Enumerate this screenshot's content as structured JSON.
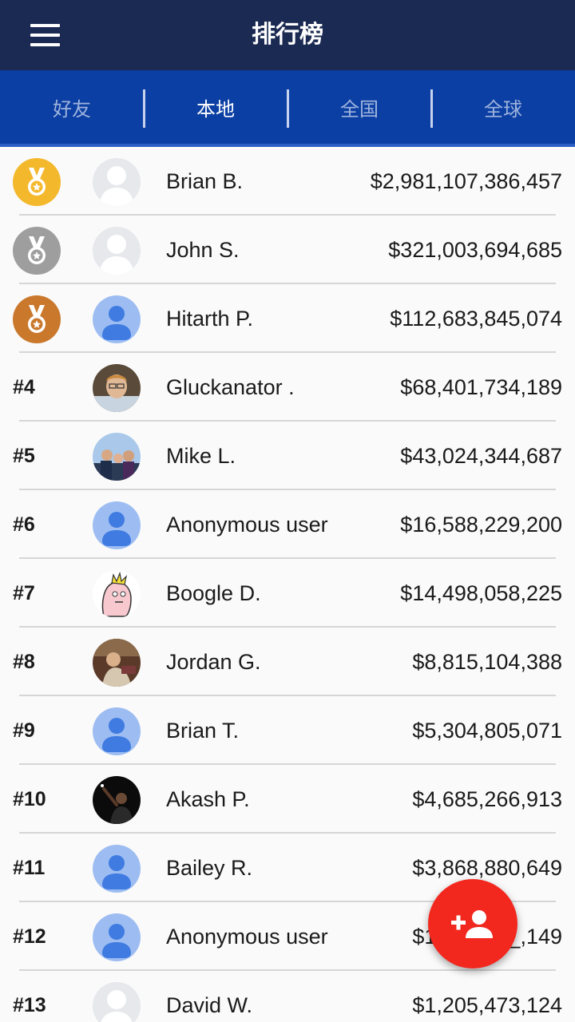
{
  "header": {
    "title": "排行榜"
  },
  "tabs": [
    {
      "label": "好友",
      "active": false
    },
    {
      "label": "本地",
      "active": true
    },
    {
      "label": "全国",
      "active": false
    },
    {
      "label": "全球",
      "active": false
    }
  ],
  "rows": [
    {
      "rank": "",
      "medal": "gold",
      "avatar": "silhouette-icon",
      "name": "Brian B.",
      "score": "$2,981,107,386,457"
    },
    {
      "rank": "",
      "medal": "silver",
      "avatar": "silhouette-icon",
      "name": "John S.",
      "score": "$321,003,694,685"
    },
    {
      "rank": "",
      "medal": "bronze",
      "avatar": "default-user-icon",
      "name": "Hitarth P.",
      "score": "$112,683,845,074"
    },
    {
      "rank": "#4",
      "medal": "",
      "avatar": "photo",
      "name": "Gluckanator .",
      "score": "$68,401,734,189"
    },
    {
      "rank": "#5",
      "medal": "",
      "avatar": "photo",
      "name": "Mike L.",
      "score": "$43,024,344,687"
    },
    {
      "rank": "#6",
      "medal": "",
      "avatar": "default-user-icon",
      "name": "Anonymous user",
      "score": "$16,588,229,200"
    },
    {
      "rank": "#7",
      "medal": "",
      "avatar": "cartoon",
      "name": "Boogle D.",
      "score": "$14,498,058,225"
    },
    {
      "rank": "#8",
      "medal": "",
      "avatar": "photo",
      "name": "Jordan G.",
      "score": "$8,815,104,388"
    },
    {
      "rank": "#9",
      "medal": "",
      "avatar": "default-user-icon",
      "name": "Brian T.",
      "score": "$5,304,805,071"
    },
    {
      "rank": "#10",
      "medal": "",
      "avatar": "photo",
      "name": "Akash P.",
      "score": "$4,685,266,913"
    },
    {
      "rank": "#11",
      "medal": "",
      "avatar": "default-user-icon",
      "name": "Bailey R.",
      "score": "$3,868,880,649"
    },
    {
      "rank": "#12",
      "medal": "",
      "avatar": "default-user-icon",
      "name": "Anonymous user",
      "score": "$1,___,___,149"
    },
    {
      "rank": "#13",
      "medal": "",
      "avatar": "silhouette-icon",
      "name": "David W.",
      "score": "$1,205,473,124"
    }
  ],
  "fab": {
    "icon": "add-friend-icon"
  },
  "colors": {
    "header_bg": "#1b2a52",
    "tabs_bg": "#0c3fa3",
    "fab": "#f2281f",
    "gold": "#f4b82d",
    "silver": "#9e9e9e",
    "bronze": "#c9782c",
    "user_icon_bg": "#9dbdf2",
    "user_icon_fg": "#3f7be0"
  }
}
